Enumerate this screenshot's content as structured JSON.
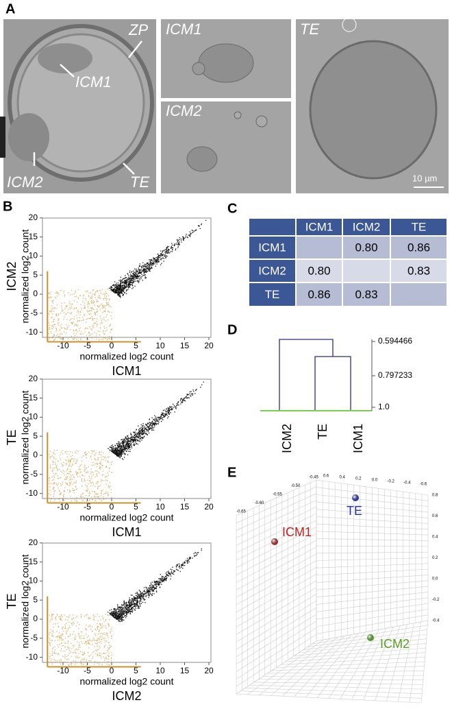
{
  "panels": {
    "a": "A",
    "b": "B",
    "c": "C",
    "d": "D",
    "e": "E"
  },
  "panel_a": {
    "whole_labels": [
      "ZP",
      "ICM1",
      "ICM2",
      "TE"
    ],
    "icm1_title": "ICM1",
    "icm2_title": "ICM2",
    "te_title": "TE",
    "scale_bar": "10 µm"
  },
  "panel_b": {
    "axis_label": "normalized log2 count",
    "plots": [
      {
        "y_name": "ICM2",
        "x_name": "ICM1"
      },
      {
        "y_name": "TE",
        "x_name": "ICM1"
      },
      {
        "y_name": "TE",
        "x_name": "ICM2"
      }
    ],
    "xticks": [
      -10,
      -5,
      0,
      5,
      10,
      15,
      20
    ],
    "yticks": [
      20,
      15,
      10,
      5,
      0,
      -5,
      -10
    ]
  },
  "panel_c": {
    "header": [
      "ICM1",
      "ICM2",
      "TE"
    ],
    "rows": [
      {
        "label": "ICM1",
        "cells": [
          null,
          "0.80",
          "0.86"
        ]
      },
      {
        "label": "ICM2",
        "cells": [
          "0.80",
          null,
          "0.83"
        ]
      },
      {
        "label": "TE",
        "cells": [
          "0.86",
          "0.83",
          null
        ]
      }
    ]
  },
  "panel_d": {
    "leaves": [
      "ICM2",
      "TE",
      "ICM1"
    ],
    "scale": [
      "0.594466",
      "0.797233",
      "1.0"
    ]
  },
  "panel_e": {
    "points": [
      "TE",
      "ICM1",
      "ICM2"
    ],
    "ticks_left": [
      "-0.65",
      "-0.60",
      "-0.55",
      "-0.50",
      "-0.45"
    ],
    "ticks_top": [
      "0.6",
      "0.4",
      "0.2",
      "0.0",
      "-0.2",
      "-0.4",
      "-0.6"
    ],
    "ticks_right": [
      "0.8",
      "0.6",
      "0.4",
      "0.2",
      "0.0",
      "-0.2",
      "-0.4"
    ]
  }
}
